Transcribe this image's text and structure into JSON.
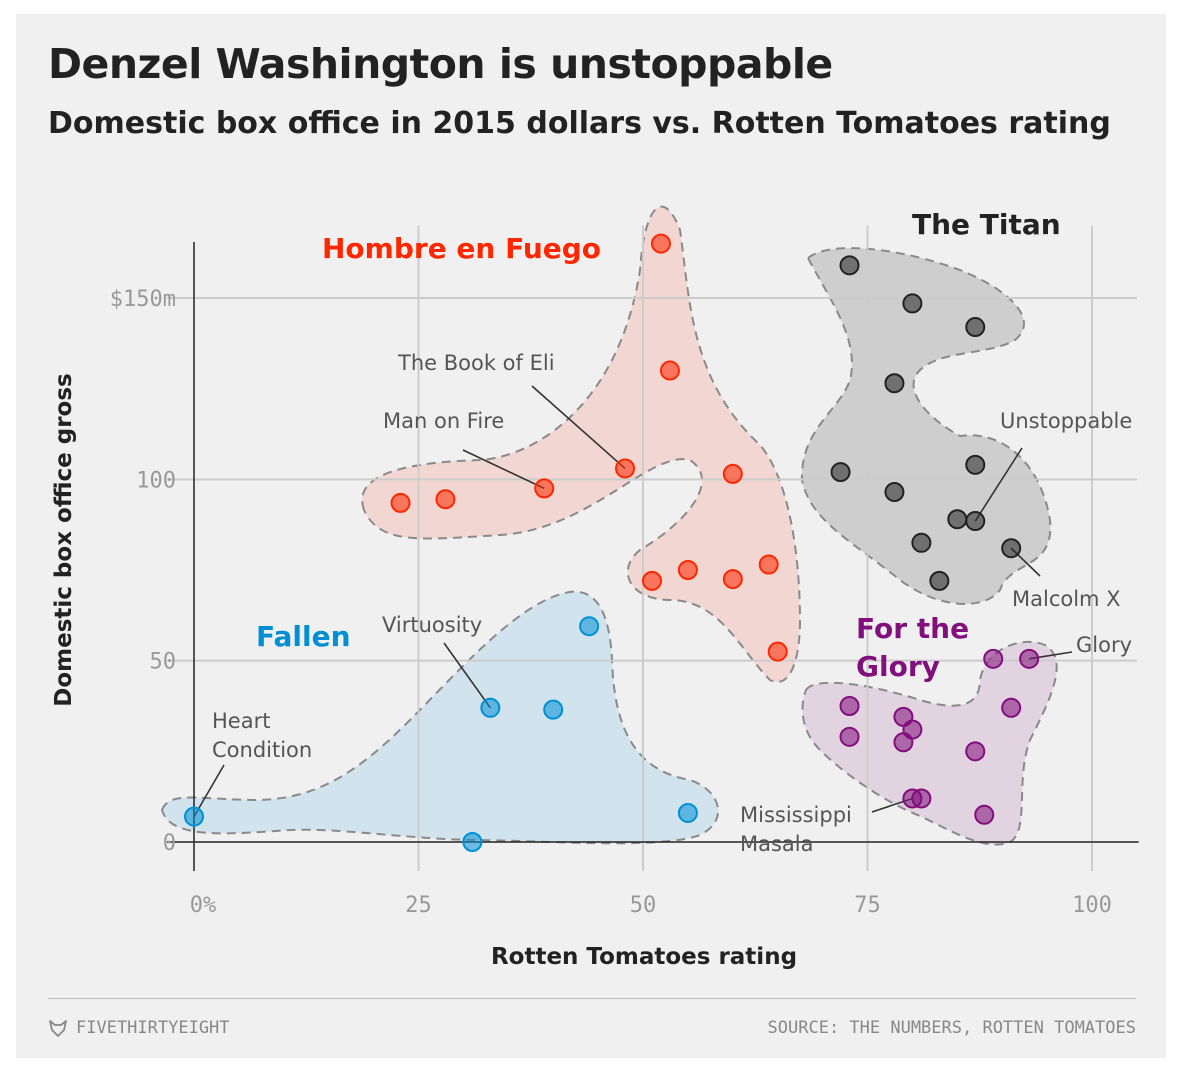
{
  "title": "Denzel Washington is unstoppable",
  "subtitle": "Domestic box office in 2015 dollars vs. Rotten Tomatoes rating",
  "footer": {
    "brand": "FIVETHIRTYEIGHT",
    "source": "SOURCE: THE NUMBERS, ROTTEN TOMATOES"
  },
  "colors": {
    "background": "#f0f0f0",
    "hombre": "#ff2700",
    "titan": "#222222",
    "fallen": "#008fd5",
    "glory": "#810f7c",
    "grid": "#cccccc"
  },
  "chart_data": {
    "type": "scatter",
    "xlabel": "Rotten Tomatoes rating",
    "ylabel": "Domestic box office gross",
    "xlim": [
      -3,
      105
    ],
    "ylim": [
      -8,
      170
    ],
    "xticks": [
      {
        "value": 0,
        "label": "0%"
      },
      {
        "value": 25,
        "label": "25"
      },
      {
        "value": 50,
        "label": "50"
      },
      {
        "value": 75,
        "label": "75"
      },
      {
        "value": 100,
        "label": "100"
      }
    ],
    "yticks": [
      {
        "value": 0,
        "label": "0"
      },
      {
        "value": 50,
        "label": "50"
      },
      {
        "value": 100,
        "label": "100"
      },
      {
        "value": 150,
        "label": "$150m"
      }
    ],
    "grid": true,
    "series": [
      {
        "name": "Hombre en Fuego",
        "color": "#ff2700",
        "points": [
          {
            "x": 23,
            "y": 93.5
          },
          {
            "x": 28,
            "y": 94.5
          },
          {
            "x": 39,
            "y": 97.5
          },
          {
            "x": 48,
            "y": 103
          },
          {
            "x": 52,
            "y": 165
          },
          {
            "x": 53,
            "y": 130
          },
          {
            "x": 60,
            "y": 101.5
          },
          {
            "x": 51,
            "y": 72
          },
          {
            "x": 55,
            "y": 75
          },
          {
            "x": 60,
            "y": 72.5
          },
          {
            "x": 64,
            "y": 76.5
          },
          {
            "x": 65,
            "y": 52.5
          }
        ]
      },
      {
        "name": "The Titan",
        "color": "#222222",
        "points": [
          {
            "x": 73,
            "y": 159
          },
          {
            "x": 80,
            "y": 148.5
          },
          {
            "x": 87,
            "y": 142
          },
          {
            "x": 78,
            "y": 126.5
          },
          {
            "x": 72,
            "y": 102
          },
          {
            "x": 78,
            "y": 96.5
          },
          {
            "x": 87,
            "y": 104
          },
          {
            "x": 85,
            "y": 89
          },
          {
            "x": 87,
            "y": 88.5
          },
          {
            "x": 81,
            "y": 82.5
          },
          {
            "x": 91,
            "y": 81
          },
          {
            "x": 83,
            "y": 72
          }
        ]
      },
      {
        "name": "Fallen",
        "color": "#008fd5",
        "points": [
          {
            "x": 0,
            "y": 7
          },
          {
            "x": 31,
            "y": 0
          },
          {
            "x": 33,
            "y": 37
          },
          {
            "x": 40,
            "y": 36.5
          },
          {
            "x": 44,
            "y": 59.5
          },
          {
            "x": 55,
            "y": 8
          }
        ]
      },
      {
        "name": "For the Glory",
        "color": "#810f7c",
        "points": [
          {
            "x": 89,
            "y": 50.5
          },
          {
            "x": 93,
            "y": 50.5
          },
          {
            "x": 73,
            "y": 37.5
          },
          {
            "x": 79,
            "y": 34.5
          },
          {
            "x": 80,
            "y": 31
          },
          {
            "x": 73,
            "y": 29
          },
          {
            "x": 79,
            "y": 27.5
          },
          {
            "x": 91,
            "y": 37
          },
          {
            "x": 87,
            "y": 25
          },
          {
            "x": 80,
            "y": 12
          },
          {
            "x": 81,
            "y": 12
          },
          {
            "x": 88,
            "y": 7.5
          }
        ]
      }
    ],
    "group_labels": [
      {
        "lines": [
          "Hombre en Fuego"
        ],
        "color": "#ff2700"
      },
      {
        "lines": [
          "The Titan"
        ],
        "color": "#222222"
      },
      {
        "lines": [
          "Fallen"
        ],
        "color": "#008fd5"
      },
      {
        "lines": [
          "For the",
          "Glory"
        ],
        "color": "#810f7c"
      }
    ],
    "annotations": [
      {
        "lines": [
          "The Book of Eli"
        ],
        "x": 48,
        "y": 103
      },
      {
        "lines": [
          "Man on Fire"
        ],
        "x": 39,
        "y": 97.5
      },
      {
        "lines": [
          "Unstoppable"
        ],
        "x": 87,
        "y": 88.5
      },
      {
        "lines": [
          "Malcolm X"
        ],
        "x": 91,
        "y": 81
      },
      {
        "lines": [
          "Glory"
        ],
        "x": 93,
        "y": 50.5
      },
      {
        "lines": [
          "Virtuosity"
        ],
        "x": 33,
        "y": 37
      },
      {
        "lines": [
          "Heart",
          "Condition"
        ],
        "x": 0,
        "y": 7
      },
      {
        "lines": [
          "Mississippi",
          "Masala"
        ],
        "x": 80,
        "y": 12
      }
    ]
  }
}
